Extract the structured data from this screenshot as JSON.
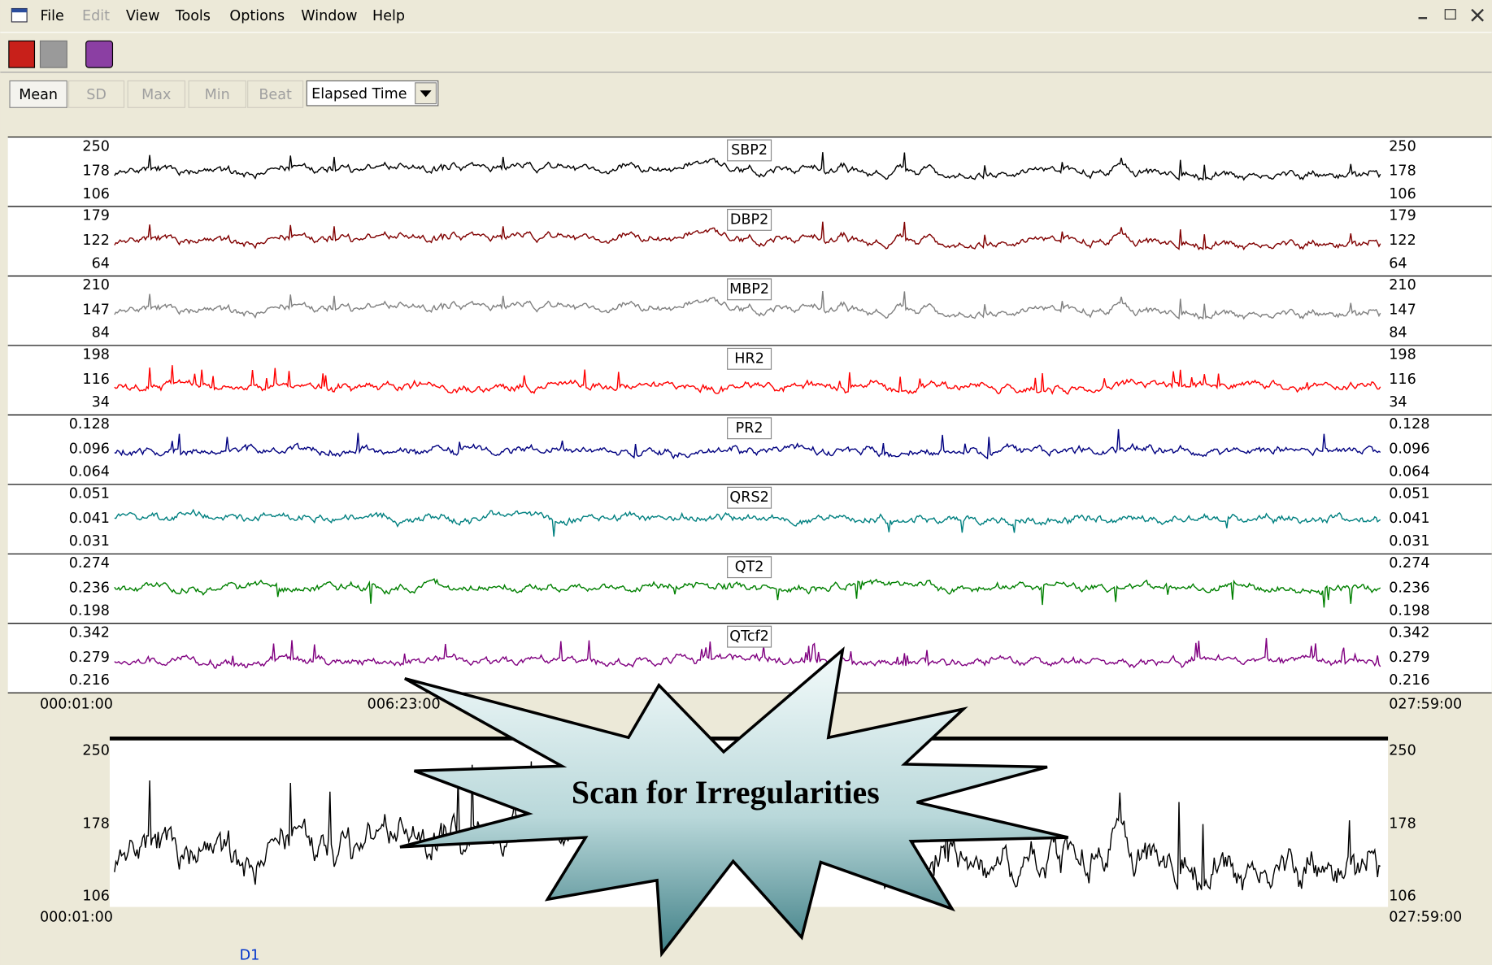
{
  "menu": [
    "File",
    "Edit",
    "View",
    "Tools",
    "Options",
    "Window",
    "Help"
  ],
  "buttons": [
    "Mean",
    "SD",
    "Max",
    "Min",
    "Beat"
  ],
  "dropdown": "Elapsed Time",
  "panels": [
    {
      "label": "SBP2",
      "color": "#000000",
      "ticks": [
        250,
        178,
        106
      ]
    },
    {
      "label": "DBP2",
      "color": "#800000",
      "ticks": [
        179,
        122,
        64
      ]
    },
    {
      "label": "MBP2",
      "color": "#808080",
      "ticks": [
        210,
        147,
        84
      ]
    },
    {
      "label": "HR2",
      "color": "#ff0000",
      "ticks": [
        198,
        116,
        34
      ]
    },
    {
      "label": "PR2",
      "color": "#000080",
      "ticks": [
        0.128,
        0.096,
        0.064
      ]
    },
    {
      "label": "QRS2",
      "color": "#008080",
      "ticks": [
        0.051,
        0.041,
        0.031
      ]
    },
    {
      "label": "QT2",
      "color": "#008000",
      "ticks": [
        0.274,
        0.236,
        0.198
      ]
    },
    {
      "label": "QTcf2",
      "color": "#800080",
      "ticks": [
        0.342,
        0.279,
        0.216
      ]
    }
  ],
  "time_axis": [
    "000:01:00",
    "006:23:00",
    "027:59:00"
  ],
  "detail": {
    "ticks": [
      250,
      178,
      106
    ],
    "time_axis": [
      "000:01:00",
      "027:59:00"
    ],
    "channel": "D1"
  },
  "callout": "Scan for Irregularities"
}
